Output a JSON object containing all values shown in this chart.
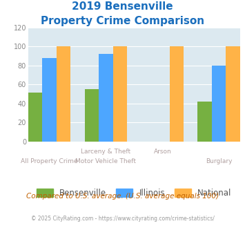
{
  "title_line1": "2019 Bensenville",
  "title_line2": "Property Crime Comparison",
  "title_color": "#1a6ebd",
  "bensenville": [
    51,
    55,
    0,
    42
  ],
  "illinois": [
    88,
    92,
    0,
    80
  ],
  "national": [
    100,
    100,
    100,
    100
  ],
  "color_bensenville": "#76b041",
  "color_illinois": "#4da6ff",
  "color_national": "#ffb347",
  "ylim": [
    0,
    120
  ],
  "yticks": [
    0,
    20,
    40,
    60,
    80,
    100,
    120
  ],
  "bg_color": "#dce9f0",
  "top_labels": [
    "",
    "Larceny & Theft",
    "Arson",
    ""
  ],
  "bot_labels": [
    "All Property Crime",
    "Motor Vehicle Theft",
    "",
    "Burglary"
  ],
  "note": "Compared to U.S. average. (U.S. average equals 100)",
  "note_color": "#c06000",
  "footer": "© 2025 CityRating.com - https://www.cityrating.com/crime-statistics/",
  "footer_color": "#999999",
  "footer_url_color": "#4da6ff",
  "legend_labels": [
    "Bensenville",
    "Illinois",
    "National"
  ],
  "label_color": "#b0a0a0"
}
